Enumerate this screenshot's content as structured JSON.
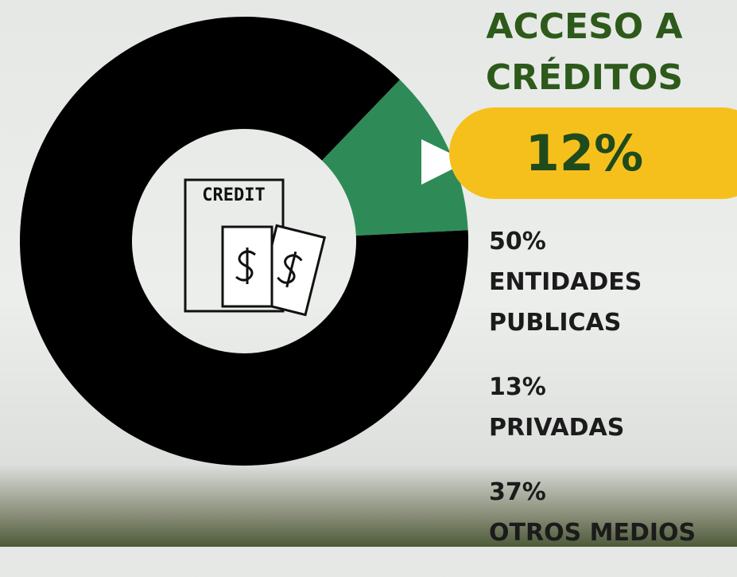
{
  "chart_data": {
    "type": "donut",
    "title": "ACCESO A CRÉDITOS",
    "values": [
      12,
      88
    ],
    "value_labels": [
      "12%",
      null
    ],
    "colors": [
      "#2e8b57",
      "#000000"
    ]
  },
  "icon_label": "CREDIT",
  "breakdown": [
    {
      "percent": "50%",
      "label": "ENTIDADES PUBLICAS"
    },
    {
      "percent": "13%",
      "label": "PRIVADAS"
    },
    {
      "percent": "37%",
      "label": "OTROS MEDIOS"
    }
  ]
}
